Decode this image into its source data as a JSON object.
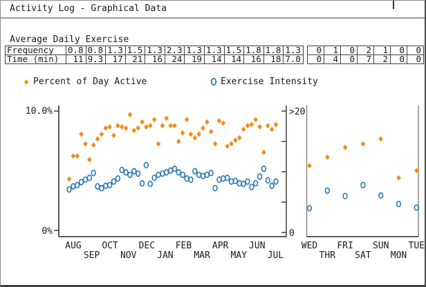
{
  "window": {
    "title": "Activity Log - Graphical Data"
  },
  "section": {
    "heading": "Average Daily Exercise"
  },
  "monthly_table": {
    "rows": [
      {
        "label": "Frequency",
        "values": [
          "0.8",
          "0.8",
          "1.3",
          "1.5",
          "1.3",
          "2.3",
          "1.3",
          "1.3",
          "1.5",
          "1.8",
          "1.8",
          "1.3"
        ]
      },
      {
        "label": "Time (min)",
        "values": [
          "11",
          "9.3",
          "17",
          "21",
          "16",
          "24",
          "19",
          "14",
          "14",
          "16",
          "18",
          "7.0"
        ]
      }
    ]
  },
  "weekly_table": {
    "rows": [
      {
        "values": [
          "0",
          "1",
          "0",
          "2",
          "1",
          "0",
          "0"
        ]
      },
      {
        "values": [
          "0",
          "4",
          "0",
          "7",
          "2",
          "0",
          "0"
        ]
      }
    ]
  },
  "legend": [
    {
      "label": "Percent of Day Active",
      "marker": "diamond",
      "color": "#f28c1b"
    },
    {
      "label": "Exercise Intensity",
      "marker": "circle",
      "color": "#2878b5"
    }
  ],
  "colors": {
    "axis": "#222222",
    "panel_border": "#8f8f8f",
    "text": "#1a1a1a"
  },
  "chart_data": [
    {
      "type": "scatter",
      "title": "Yearly weekly activity",
      "x_axis": {
        "tick_labels": [
          "AUG",
          "SEP",
          "OCT",
          "NOV",
          "DEC",
          "JAN",
          "FEB",
          "MAR",
          "APR",
          "MAY",
          "JUN",
          "JUL"
        ],
        "stagger": true
      },
      "y_axis_left": {
        "max_label": "10.0%",
        "min_label": "0%",
        "range": [
          0,
          10
        ],
        "unit": "percent"
      },
      "y_axis_right": {
        "max_label": ">20",
        "min_label": "0",
        "range": [
          0,
          20
        ],
        "tick_count": 5
      },
      "grid": false,
      "series": [
        {
          "name": "Percent of Day Active",
          "marker": "diamond",
          "axis": "left",
          "color": "#f28c1b",
          "values": [
            4.4,
            6.3,
            6.3,
            8.1,
            7.3,
            6.0,
            7.2,
            7.7,
            8.1,
            8.6,
            8.7,
            8.0,
            8.8,
            8.7,
            8.6,
            9.7,
            8.4,
            8.6,
            9.1,
            8.7,
            8.8,
            9.3,
            7.3,
            8.8,
            9.4,
            8.8,
            8.8,
            7.5,
            8.2,
            9.3,
            8.1,
            7.8,
            8.1,
            8.6,
            9.1,
            8.3,
            7.3,
            9.2,
            9.0,
            7.1,
            7.3,
            7.6,
            7.8,
            8.5,
            8.8,
            8.9,
            9.3,
            8.7,
            6.6,
            8.8,
            8.5,
            8.9
          ]
        },
        {
          "name": "Exercise Intensity",
          "marker": "circle",
          "axis": "right",
          "color": "#2878b5",
          "values": [
            7.1,
            7.6,
            7.8,
            8.3,
            8.7,
            9.0,
            9.8,
            7.6,
            7.3,
            7.7,
            7.8,
            8.4,
            8.9,
            10.3,
            9.9,
            9.5,
            10.1,
            9.7,
            8.1,
            11.1,
            8.0,
            9.0,
            9.5,
            9.7,
            9.9,
            10.2,
            10.5,
            9.9,
            9.5,
            8.9,
            8.7,
            10.1,
            9.5,
            9.3,
            9.5,
            9.8,
            7.3,
            8.7,
            8.9,
            9.0,
            8.4,
            8.5,
            8.1,
            8.0,
            8.4,
            7.5,
            8.1,
            9.2,
            10.5,
            8.6,
            7.7,
            8.4
          ]
        }
      ]
    },
    {
      "type": "scatter",
      "title": "Day-of-week activity",
      "x_axis": {
        "tick_labels": [
          "WED",
          "THR",
          "FRI",
          "SAT",
          "SUN",
          "MON",
          "TUE"
        ],
        "stagger": true
      },
      "y_axis_left_range": [
        0,
        10
      ],
      "y_axis_right_range": [
        0,
        20
      ],
      "grid": false,
      "series": [
        {
          "name": "Percent of Day Active",
          "marker": "diamond",
          "axis": "left",
          "color": "#f28c1b",
          "values": [
            5.5,
            6.2,
            7.0,
            7.3,
            7.7,
            4.5,
            5.1
          ]
        },
        {
          "name": "Exercise Intensity",
          "marker": "circle",
          "axis": "right",
          "color": "#2878b5",
          "values": [
            4.0,
            6.9,
            6.0,
            7.8,
            6.1,
            4.7,
            4.1
          ]
        }
      ]
    }
  ]
}
